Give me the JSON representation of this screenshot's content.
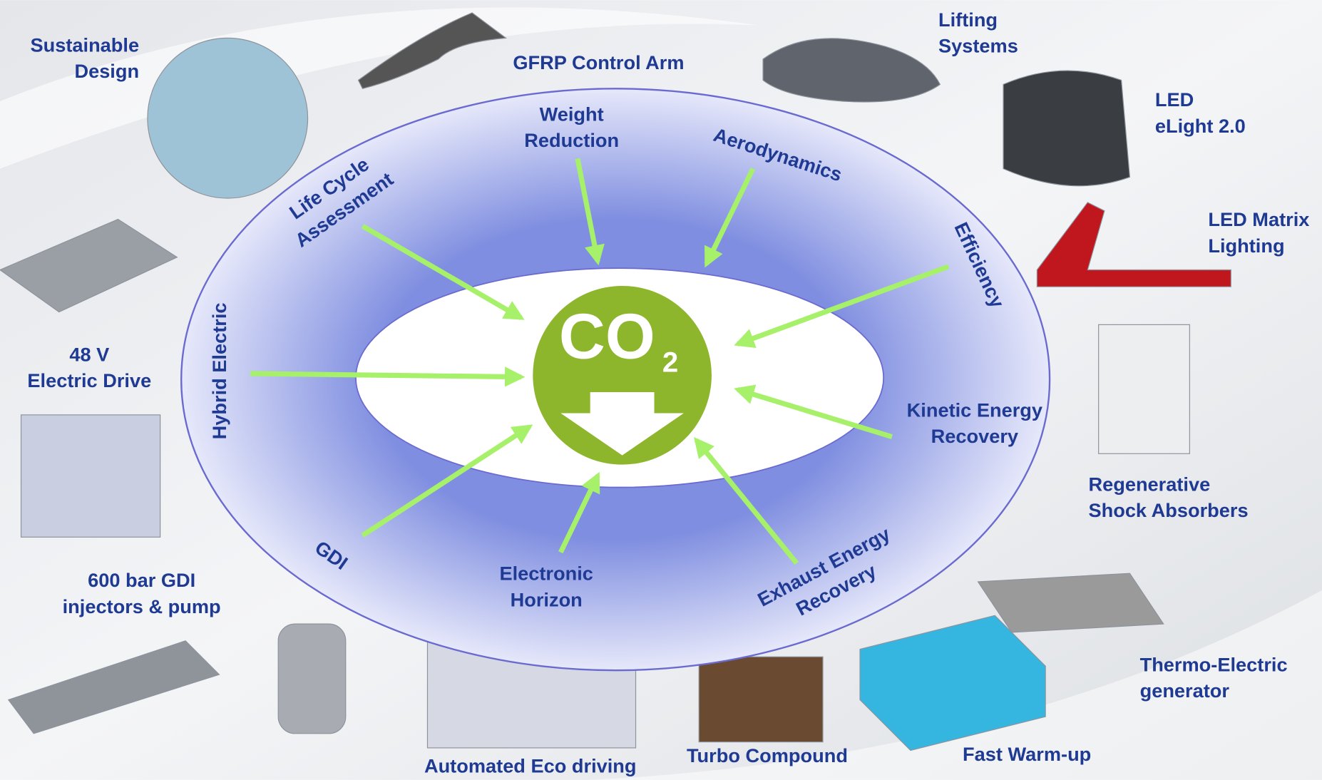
{
  "center": {
    "label": "CO",
    "subscript": "2"
  },
  "ring_labels": [
    {
      "lines": [
        "Life Cycle",
        "Assessment"
      ]
    },
    {
      "lines": [
        "Weight",
        "Reduction"
      ]
    },
    {
      "lines": [
        "Aerodynamics"
      ]
    },
    {
      "lines": [
        "Efficiency"
      ]
    },
    {
      "lines": [
        "Hybrid Electric"
      ]
    },
    {
      "lines": [
        "Kinetic Energy",
        "Recovery"
      ]
    },
    {
      "lines": [
        "GDI"
      ]
    },
    {
      "lines": [
        "Electronic",
        "Horizon"
      ]
    },
    {
      "lines": [
        "Exhaust Energy",
        "Recovery"
      ]
    }
  ],
  "captions": [
    {
      "lines": [
        "Sustainable",
        "Design"
      ]
    },
    {
      "lines": [
        "GFRP Control  Arm"
      ]
    },
    {
      "lines": [
        "Lifting",
        "Systems"
      ]
    },
    {
      "lines": [
        "LED",
        "eLight 2.0"
      ]
    },
    {
      "lines": [
        "LED Matrix",
        "Lighting"
      ]
    },
    {
      "lines": [
        "48 V",
        "Electric Drive"
      ]
    },
    {
      "lines": [
        "Regenerative",
        "Shock Absorbers"
      ]
    },
    {
      "lines": [
        "600 bar GDI",
        "injectors & pump"
      ]
    },
    {
      "lines": [
        "Thermo-Electric",
        "generator"
      ]
    },
    {
      "lines": [
        "Automated Eco driving"
      ]
    },
    {
      "lines": [
        "Turbo Compound"
      ]
    },
    {
      "lines": [
        "Fast Warm-up"
      ]
    }
  ]
}
